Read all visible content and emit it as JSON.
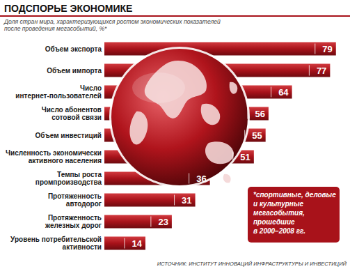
{
  "chart_data": {
    "type": "bar",
    "orientation": "horizontal",
    "title": "ПОДСПОРЬЕ ЭКОНОМИКЕ",
    "subtitle": "Доля стран мира, характеризующихся ростом экономических показателей\nпосле проведения мегасобытий, %*",
    "categories": [
      "Объем экспорта",
      "Объем импорта",
      "Число\nинтернет-пользователей",
      "Число абонентов\nсотовой связи",
      "Объем инвестиций",
      "Численность экономически\nактивного населения",
      "Темпы роста\nпромпроизводства",
      "Протяженность\nавтодорог",
      "Протяженность\nжелезных дорог",
      "Уровень потребительской\nактивности"
    ],
    "values": [
      79,
      77,
      64,
      56,
      55,
      51,
      36,
      31,
      23,
      14
    ],
    "color": "#a8121a",
    "xlim": [
      0,
      80
    ],
    "tick_labels": false,
    "data_labels": true,
    "annotations": [
      "*спортивные, деловые\nи культурные\nмегасобытия,\nпрошедшие\nв 2000–2008 гг.",
      "ИСТОЧНИК: ИНСТИТУТ ИННОВАЦИЙ ИНФРАСТРУКТУРЫ И ИНВЕСТИЦИЙ"
    ]
  }
}
